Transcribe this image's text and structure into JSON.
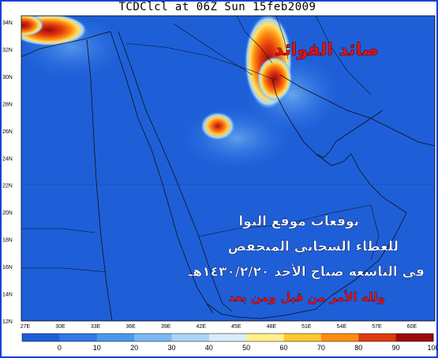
{
  "title": "TCDClcl at 06Z Sun 15feb2009",
  "watermark": "صائد الفوائد",
  "caption": {
    "line1": "توقعات موقع النوا",
    "line2": "للغطاء السحابي المنخفض",
    "line3": "في التاسعة صباح الأحد ١٤٣٠/٢/٢٠هـ",
    "line4": "ولله الأمر من قبل ومن بعد"
  },
  "latitudes": [
    "34N",
    "32N",
    "30N",
    "28N",
    "26N",
    "24N",
    "22N",
    "20N",
    "18N",
    "16N",
    "14N",
    "12N"
  ],
  "longitudes": [
    "27E",
    "30E",
    "33E",
    "36E",
    "39E",
    "42E",
    "45E",
    "48E",
    "51E",
    "54E",
    "57E",
    "60E"
  ],
  "colorbar": {
    "labels": [
      "0",
      "10",
      "20",
      "30",
      "40",
      "50",
      "60",
      "70",
      "80",
      "90",
      "100"
    ],
    "colors": [
      "#1e5fd8",
      "#2f78e8",
      "#4a98f0",
      "#7ab8f4",
      "#a8d4f6",
      "#d9ecf7",
      "#fff08a",
      "#ffc830",
      "#ff8c10",
      "#e03a10",
      "#9a0a0a"
    ]
  }
}
